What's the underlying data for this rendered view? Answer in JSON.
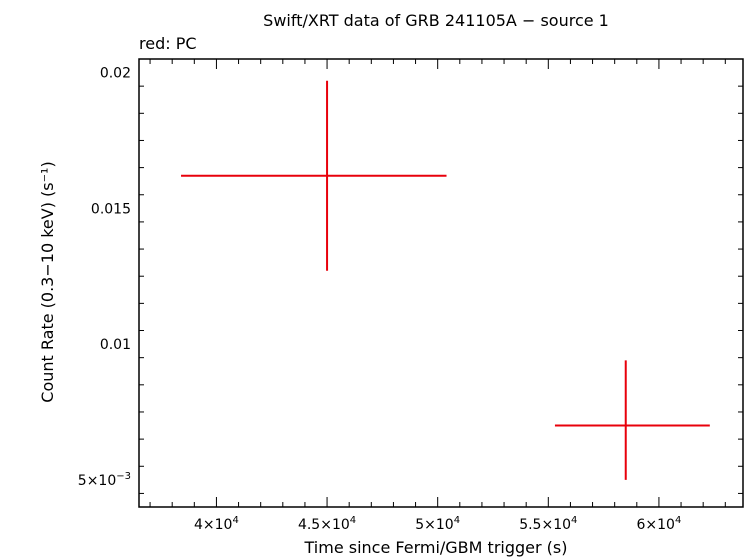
{
  "chart_data": {
    "type": "scatter",
    "title": "Swift/XRT data of GRB 241105A − source 1",
    "subtitle": "red: PC",
    "xlabel": "Time since Fermi/GBM trigger (s)",
    "ylabel": "Count Rate (0.3−10 keV) (s⁻¹)",
    "xlim": [
      36500,
      63800
    ],
    "ylim": [
      0.004,
      0.0205
    ],
    "x_ticks": [
      {
        "value": 40000,
        "mant": "4",
        "exp": "4"
      },
      {
        "value": 45000,
        "mant": "4.5",
        "exp": "4"
      },
      {
        "value": 50000,
        "mant": "5",
        "exp": "4"
      },
      {
        "value": 55000,
        "mant": "5.5",
        "exp": "4"
      },
      {
        "value": 60000,
        "mant": "6",
        "exp": "4"
      }
    ],
    "y_ticks": [
      {
        "value": 0.02,
        "label": "0.02"
      },
      {
        "value": 0.015,
        "label": "0.015"
      },
      {
        "value": 0.01,
        "label": "0.01"
      },
      {
        "value": 0.005,
        "mant": "5",
        "exp": "−3"
      }
    ],
    "grid": false,
    "series": [
      {
        "color": "#e8000b",
        "points": [
          {
            "x": 45000,
            "xerr_low": 6600,
            "xerr_high": 5400,
            "y": 0.0162,
            "yerr_low": 0.0035,
            "yerr_high": 0.0035
          },
          {
            "x": 58500,
            "xerr_low": 3200,
            "xerr_high": 3800,
            "y": 0.007,
            "yerr_low": 0.002,
            "yerr_high": 0.0024
          }
        ]
      }
    ]
  }
}
